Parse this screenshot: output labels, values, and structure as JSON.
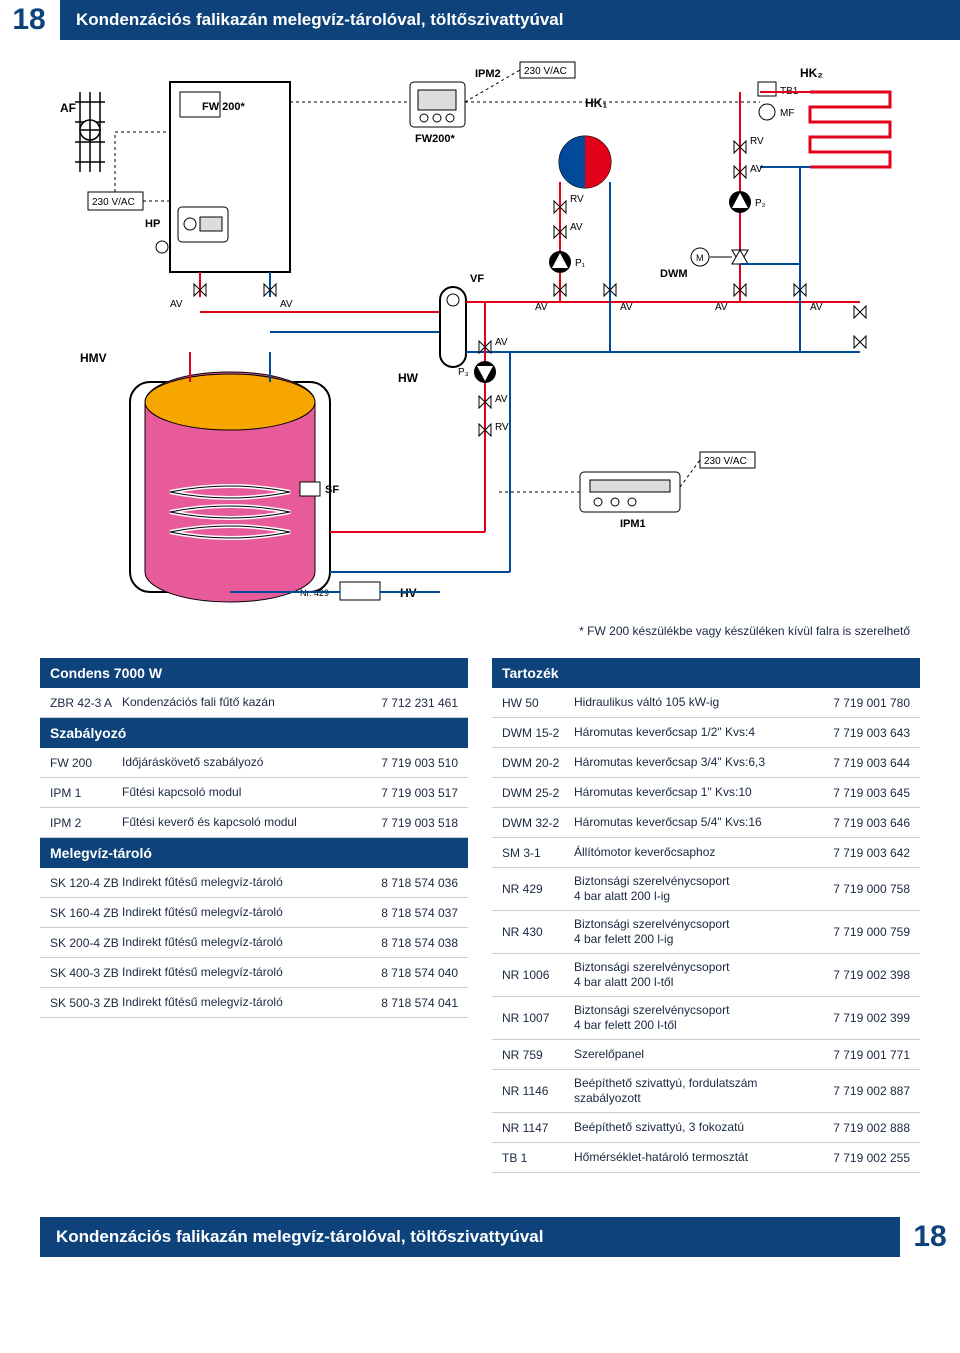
{
  "page_number": "18",
  "title": "Kondenzációs falikazán melegvíz-tárolóval, töltőszivattyúval",
  "footnote": "* FW 200 készülékbe vagy készüléken kívül falra is szerelhető",
  "diagram": {
    "labels": {
      "af": "AF",
      "fw200a": "FW 200*",
      "fw200b": "FW200*",
      "hp": "HP",
      "ipm2": "IPM2",
      "v230a": "230 V/AC",
      "v230b": "230 V/AC",
      "v230c": "230 V/AC",
      "hk1": "HK₁",
      "hk2": "HK₂",
      "tb1": "TB1",
      "mf": "MF",
      "rv": "RV",
      "av": "AV",
      "p1": "P₁",
      "p2": "P₂",
      "p3": "P₃",
      "m": "M",
      "vf": "VF",
      "dwm": "DWM",
      "hmv": "HMV",
      "hw": "HW",
      "hv": "HV",
      "sf": "SF",
      "ipm1": "IPM1",
      "nr429": "Nr. 429"
    },
    "colors": {
      "red": "#e2001a",
      "blue": "#004a99",
      "black": "#000000",
      "tank_fill": "#e85b9b",
      "tank_top": "#f7a600",
      "white": "#ffffff",
      "grey": "#888888"
    }
  },
  "left_tables": [
    {
      "header": "Condens 7000 W",
      "rows": [
        {
          "c1": "ZBR 42-3 A",
          "c2": "Kondenzációs fali fűtő kazán",
          "c3": "7 712 231 461"
        }
      ]
    },
    {
      "header": "Szabályozó",
      "rows": [
        {
          "c1": "FW 200",
          "c2": "Időjáráskövető szabályozó",
          "c3": "7 719 003 510"
        },
        {
          "c1": "IPM 1",
          "c2": "Fűtési kapcsoló modul",
          "c3": "7 719 003 517"
        },
        {
          "c1": "IPM 2",
          "c2": "Fűtési keverő és kapcsoló modul",
          "c3": "7 719 003 518"
        }
      ]
    },
    {
      "header": "Melegvíz-tároló",
      "rows": [
        {
          "c1": "SK 120-4 ZB",
          "c2": "Indirekt fűtésű melegvíz-tároló",
          "c3": "8 718 574 036"
        },
        {
          "c1": "SK 160-4 ZB",
          "c2": "Indirekt fűtésű melegvíz-tároló",
          "c3": "8 718 574 037"
        },
        {
          "c1": "SK 200-4 ZB",
          "c2": "Indirekt fűtésű melegvíz-tároló",
          "c3": "8 718 574 038"
        },
        {
          "c1": "SK 400-3 ZB",
          "c2": "Indirekt fűtésű melegvíz-tároló",
          "c3": "8 718 574 040"
        },
        {
          "c1": "SK 500-3 ZB",
          "c2": "Indirekt fűtésű melegvíz-tároló",
          "c3": "8 718 574 041"
        }
      ]
    }
  ],
  "right_tables": [
    {
      "header": "Tartozék",
      "rows": [
        {
          "c1": "HW 50",
          "c2": "Hidraulikus váltó 105 kW-ig",
          "c3": "7 719 001 780"
        },
        {
          "c1": "DWM 15-2",
          "c2": "Háromutas keverőcsap 1/2\" Kvs:4",
          "c3": "7 719 003 643"
        },
        {
          "c1": "DWM 20-2",
          "c2": "Háromutas keverőcsap 3/4\" Kvs:6,3",
          "c3": "7 719 003 644"
        },
        {
          "c1": "DWM 25-2",
          "c2": "Háromutas keverőcsap 1\" Kvs:10",
          "c3": "7 719 003 645"
        },
        {
          "c1": "DWM 32-2",
          "c2": "Háromutas keverőcsap 5/4\" Kvs:16",
          "c3": "7 719 003 646"
        },
        {
          "c1": "SM 3-1",
          "c2": "Állítómotor keverőcsaphoz",
          "c3": "7 719 003 642"
        },
        {
          "c1": "NR 429",
          "c2": "Biztonsági szerelvénycsoport\n4 bar alatt 200 l-ig",
          "c3": "7 719 000 758",
          "tall": true
        },
        {
          "c1": "NR 430",
          "c2": "Biztonsági szerelvénycsoport\n4 bar felett 200 l-ig",
          "c3": "7 719 000 759",
          "tall": true
        },
        {
          "c1": "NR 1006",
          "c2": "Biztonsági szerelvénycsoport\n4 bar alatt 200 l-től",
          "c3": "7 719 002 398",
          "tall": true
        },
        {
          "c1": "NR 1007",
          "c2": "Biztonsági szerelvénycsoport\n4 bar felett 200 l-től",
          "c3": "7 719 002 399",
          "tall": true
        },
        {
          "c1": "NR 759",
          "c2": "Szerelőpanel",
          "c3": "7 719 001 771"
        },
        {
          "c1": "NR 1146",
          "c2": "Beépíthető szivattyú, fordulatszám\nszabályozott",
          "c3": "7 719 002 887",
          "tall": true
        },
        {
          "c1": "NR 1147",
          "c2": "Beépíthető szivattyú, 3 fokozatú",
          "c3": "7 719 002 888"
        },
        {
          "c1": "TB 1",
          "c2": "Hőmérséklet-határoló termosztát",
          "c3": "7 719 002 255"
        }
      ]
    }
  ],
  "bottom_title": "Kondenzációs falikazán melegvíz-tárolóval, töltőszivattyúval"
}
